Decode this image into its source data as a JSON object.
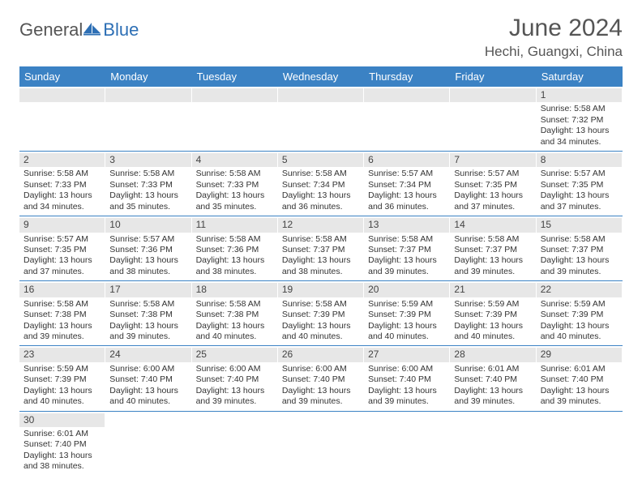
{
  "logo": {
    "text1": "General",
    "text2": "Blue"
  },
  "title": "June 2024",
  "location": "Hechi, Guangxi, China",
  "colors": {
    "header_bg": "#3b82c4",
    "header_text": "#ffffff",
    "daynum_bg": "#e7e7e7",
    "row_divider": "#3b82c4",
    "logo_blue": "#2d6fb5",
    "text": "#333333",
    "title_text": "#555555"
  },
  "day_names": [
    "Sunday",
    "Monday",
    "Tuesday",
    "Wednesday",
    "Thursday",
    "Friday",
    "Saturday"
  ],
  "labels": {
    "sunrise": "Sunrise:",
    "sunset": "Sunset:",
    "daylight": "Daylight:"
  },
  "weeks": [
    [
      null,
      null,
      null,
      null,
      null,
      null,
      {
        "n": "1",
        "sr": "5:58 AM",
        "ss": "7:32 PM",
        "dl": "13 hours and 34 minutes."
      }
    ],
    [
      {
        "n": "2",
        "sr": "5:58 AM",
        "ss": "7:33 PM",
        "dl": "13 hours and 34 minutes."
      },
      {
        "n": "3",
        "sr": "5:58 AM",
        "ss": "7:33 PM",
        "dl": "13 hours and 35 minutes."
      },
      {
        "n": "4",
        "sr": "5:58 AM",
        "ss": "7:33 PM",
        "dl": "13 hours and 35 minutes."
      },
      {
        "n": "5",
        "sr": "5:58 AM",
        "ss": "7:34 PM",
        "dl": "13 hours and 36 minutes."
      },
      {
        "n": "6",
        "sr": "5:57 AM",
        "ss": "7:34 PM",
        "dl": "13 hours and 36 minutes."
      },
      {
        "n": "7",
        "sr": "5:57 AM",
        "ss": "7:35 PM",
        "dl": "13 hours and 37 minutes."
      },
      {
        "n": "8",
        "sr": "5:57 AM",
        "ss": "7:35 PM",
        "dl": "13 hours and 37 minutes."
      }
    ],
    [
      {
        "n": "9",
        "sr": "5:57 AM",
        "ss": "7:35 PM",
        "dl": "13 hours and 37 minutes."
      },
      {
        "n": "10",
        "sr": "5:57 AM",
        "ss": "7:36 PM",
        "dl": "13 hours and 38 minutes."
      },
      {
        "n": "11",
        "sr": "5:58 AM",
        "ss": "7:36 PM",
        "dl": "13 hours and 38 minutes."
      },
      {
        "n": "12",
        "sr": "5:58 AM",
        "ss": "7:37 PM",
        "dl": "13 hours and 38 minutes."
      },
      {
        "n": "13",
        "sr": "5:58 AM",
        "ss": "7:37 PM",
        "dl": "13 hours and 39 minutes."
      },
      {
        "n": "14",
        "sr": "5:58 AM",
        "ss": "7:37 PM",
        "dl": "13 hours and 39 minutes."
      },
      {
        "n": "15",
        "sr": "5:58 AM",
        "ss": "7:37 PM",
        "dl": "13 hours and 39 minutes."
      }
    ],
    [
      {
        "n": "16",
        "sr": "5:58 AM",
        "ss": "7:38 PM",
        "dl": "13 hours and 39 minutes."
      },
      {
        "n": "17",
        "sr": "5:58 AM",
        "ss": "7:38 PM",
        "dl": "13 hours and 39 minutes."
      },
      {
        "n": "18",
        "sr": "5:58 AM",
        "ss": "7:38 PM",
        "dl": "13 hours and 40 minutes."
      },
      {
        "n": "19",
        "sr": "5:58 AM",
        "ss": "7:39 PM",
        "dl": "13 hours and 40 minutes."
      },
      {
        "n": "20",
        "sr": "5:59 AM",
        "ss": "7:39 PM",
        "dl": "13 hours and 40 minutes."
      },
      {
        "n": "21",
        "sr": "5:59 AM",
        "ss": "7:39 PM",
        "dl": "13 hours and 40 minutes."
      },
      {
        "n": "22",
        "sr": "5:59 AM",
        "ss": "7:39 PM",
        "dl": "13 hours and 40 minutes."
      }
    ],
    [
      {
        "n": "23",
        "sr": "5:59 AM",
        "ss": "7:39 PM",
        "dl": "13 hours and 40 minutes."
      },
      {
        "n": "24",
        "sr": "6:00 AM",
        "ss": "7:40 PM",
        "dl": "13 hours and 40 minutes."
      },
      {
        "n": "25",
        "sr": "6:00 AM",
        "ss": "7:40 PM",
        "dl": "13 hours and 39 minutes."
      },
      {
        "n": "26",
        "sr": "6:00 AM",
        "ss": "7:40 PM",
        "dl": "13 hours and 39 minutes."
      },
      {
        "n": "27",
        "sr": "6:00 AM",
        "ss": "7:40 PM",
        "dl": "13 hours and 39 minutes."
      },
      {
        "n": "28",
        "sr": "6:01 AM",
        "ss": "7:40 PM",
        "dl": "13 hours and 39 minutes."
      },
      {
        "n": "29",
        "sr": "6:01 AM",
        "ss": "7:40 PM",
        "dl": "13 hours and 39 minutes."
      }
    ],
    [
      {
        "n": "30",
        "sr": "6:01 AM",
        "ss": "7:40 PM",
        "dl": "13 hours and 38 minutes."
      },
      null,
      null,
      null,
      null,
      null,
      null
    ]
  ]
}
